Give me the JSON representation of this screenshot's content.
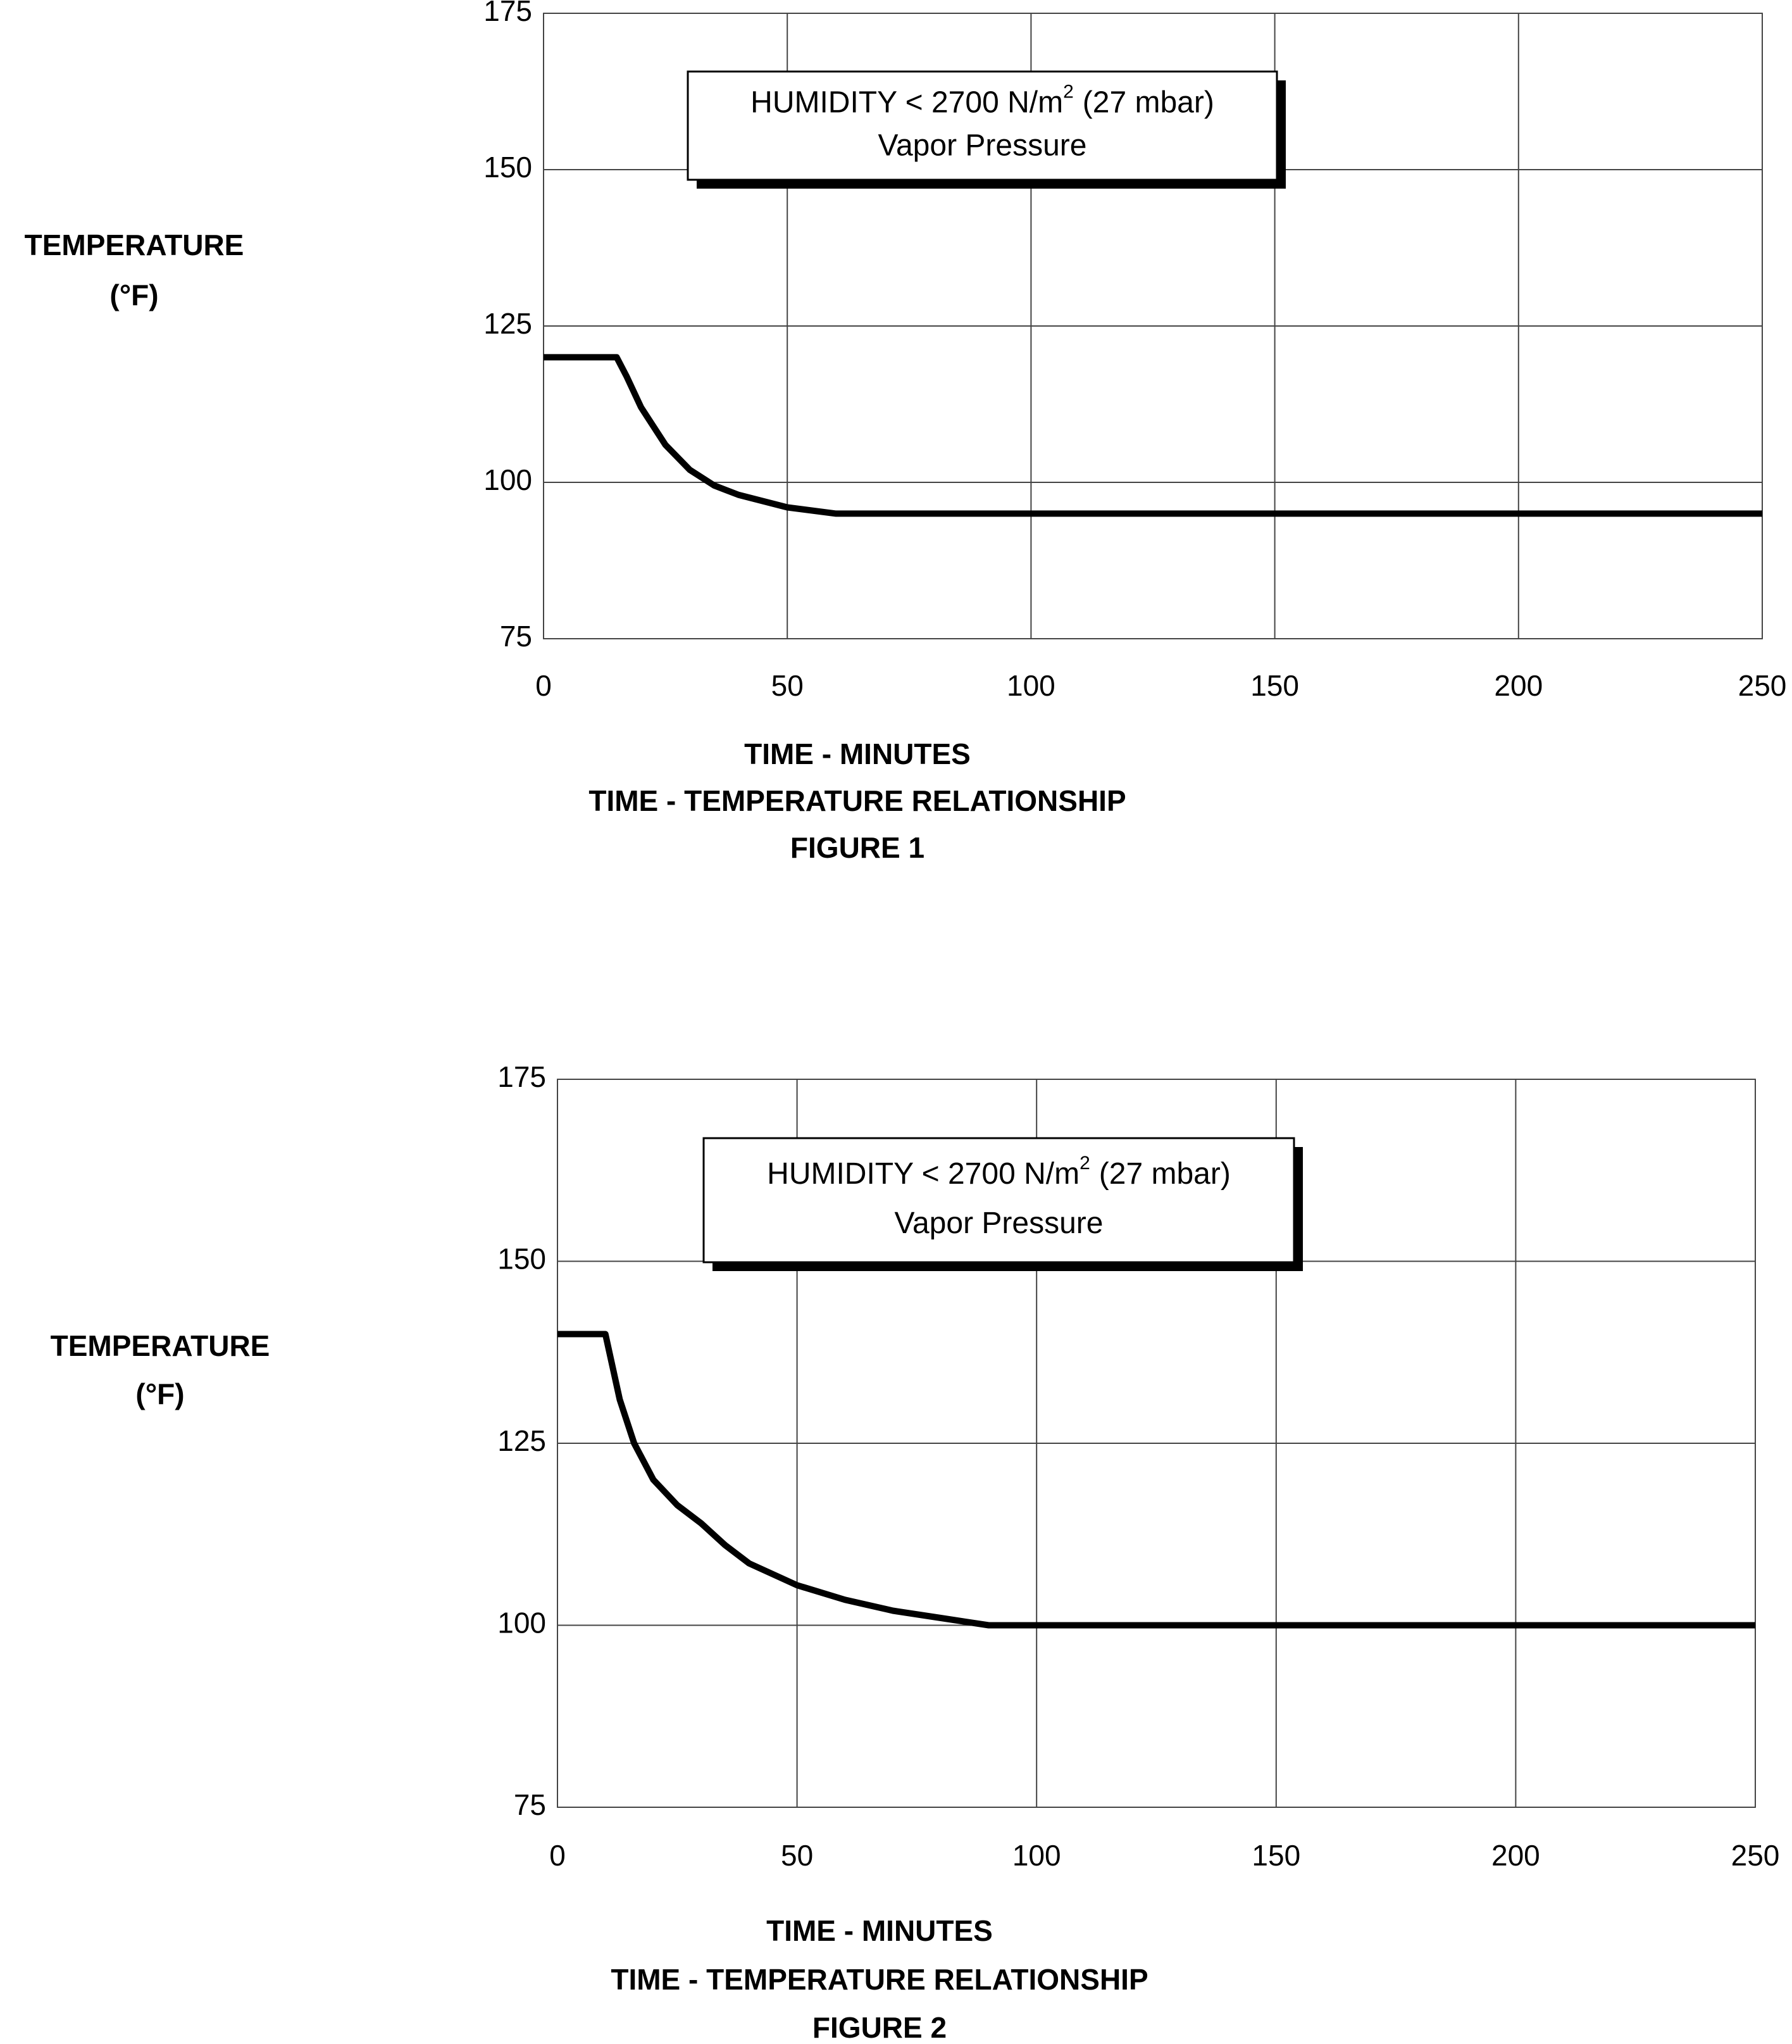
{
  "chart_data": [
    {
      "type": "line",
      "ylabel": [
        "TEMPERATURE",
        "(°F)"
      ],
      "xlabel": "TIME - MINUTES",
      "subtitle": "TIME - TEMPERATURE RELATIONSHIP",
      "caption": "FIGURE 1",
      "annotation": [
        "HUMIDITY < 2700 N/m",
        "2",
        "(27 mbar)",
        "Vapor Pressure"
      ],
      "xlim": [
        0,
        250
      ],
      "xticks": [
        0,
        50,
        100,
        150,
        200,
        250
      ],
      "ylim": [
        75,
        175
      ],
      "yticks": [
        75,
        100,
        125,
        150,
        175
      ],
      "grid": true,
      "color": "#000000",
      "x": [
        0,
        15,
        17,
        20,
        25,
        30,
        35,
        40,
        50,
        60,
        250
      ],
      "values": [
        120,
        120,
        117,
        112,
        106,
        102,
        99.5,
        98,
        96,
        95,
        95
      ]
    },
    {
      "type": "line",
      "ylabel": [
        "TEMPERATURE",
        "(°F)"
      ],
      "xlabel": "TIME - MINUTES",
      "subtitle": "TIME - TEMPERATURE RELATIONSHIP",
      "caption": "FIGURE 2",
      "annotation": [
        "HUMIDITY < 2700 N/m",
        "2",
        "(27 mbar)",
        "Vapor Pressure"
      ],
      "xlim": [
        0,
        250
      ],
      "xticks": [
        0,
        50,
        100,
        150,
        200,
        250
      ],
      "ylim": [
        75,
        175
      ],
      "yticks": [
        75,
        100,
        125,
        150,
        175
      ],
      "grid": true,
      "color": "#000000",
      "x": [
        0,
        10,
        11,
        13,
        16,
        20,
        25,
        30,
        35,
        40,
        50,
        60,
        70,
        80,
        90,
        250
      ],
      "values": [
        140,
        140,
        137,
        131,
        125,
        120,
        116.5,
        114,
        111,
        108.5,
        105.5,
        103.5,
        102,
        101,
        100,
        100
      ]
    }
  ]
}
